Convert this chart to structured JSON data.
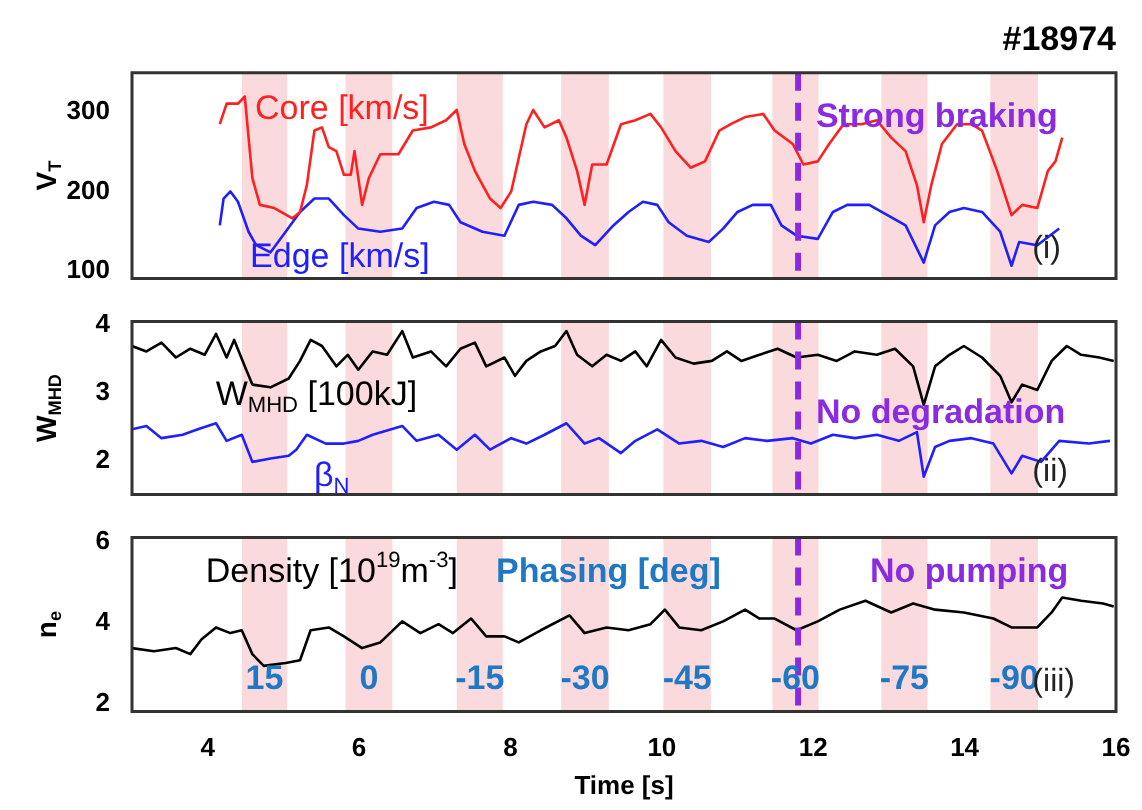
{
  "chart_data": [
    {
      "type": "line",
      "title": "#18974",
      "ylabel": "V$_{T}$",
      "xlim": [
        3,
        16
      ],
      "xticks": [
        4,
        6,
        8,
        10,
        12,
        14,
        16
      ],
      "ylim": [
        90,
        350
      ],
      "yticks": [
        100,
        200,
        300
      ],
      "tick_labels": "y",
      "bands": [
        {
          "axis": "x",
          "from": 4.45,
          "to": 5.05,
          "color": "#fadadd"
        },
        {
          "axis": "x",
          "from": 5.82,
          "to": 6.44,
          "color": "#fadadd"
        },
        {
          "axis": "x",
          "from": 7.29,
          "to": 7.9,
          "color": "#fadadd"
        },
        {
          "axis": "x",
          "from": 8.67,
          "to": 9.3,
          "color": "#fadadd"
        },
        {
          "axis": "x",
          "from": 10.02,
          "to": 10.65,
          "color": "#fadadd"
        },
        {
          "axis": "x",
          "from": 11.46,
          "to": 12.07,
          "color": "#fadadd"
        },
        {
          "axis": "x",
          "from": 12.9,
          "to": 13.51,
          "color": "#fadadd"
        },
        {
          "axis": "x",
          "from": 14.34,
          "to": 14.97,
          "color": "#fadadd"
        }
      ],
      "ref_lines": [
        {
          "axis": "x",
          "value": 11.8,
          "color": "#8a2be2",
          "line_style": "dashed"
        }
      ],
      "annotations": [
        "Strong braking",
        "(i)"
      ],
      "series": [
        {
          "name": "Core [km/s]",
          "color": "#ff2020",
          "x": [
            4.16,
            4.25,
            4.4,
            4.49,
            4.59,
            4.69,
            4.88,
            5.12,
            5.22,
            5.31,
            5.41,
            5.51,
            5.6,
            5.7,
            5.8,
            5.89,
            5.94,
            6.04,
            6.13,
            6.28,
            6.52,
            6.71,
            6.95,
            7.15,
            7.29,
            7.39,
            7.53,
            7.73,
            7.87,
            8.01,
            8.21,
            8.3,
            8.45,
            8.64,
            8.74,
            8.88,
            8.98,
            9.08,
            9.27,
            9.46,
            9.65,
            9.85,
            9.99,
            10.18,
            10.38,
            10.57,
            10.76,
            10.91,
            11.1,
            11.34,
            11.49,
            11.73,
            11.87,
            12.06,
            12.21,
            12.4,
            12.64,
            12.84,
            13.03,
            13.22,
            13.37,
            13.46,
            13.56,
            13.7,
            13.9,
            14.09,
            14.23,
            14.43,
            14.62,
            14.76,
            14.96,
            15.1,
            15.2,
            15.29
          ],
          "values": [
            285,
            311,
            311,
            320,
            217,
            183,
            179,
            166,
            174,
            208,
            277,
            281,
            256,
            251,
            221,
            221,
            251,
            183,
            217,
            247,
            247,
            277,
            281,
            290,
            303,
            260,
            226,
            191,
            179,
            200,
            285,
            303,
            281,
            290,
            268,
            226,
            183,
            234,
            234,
            285,
            290,
            298,
            281,
            251,
            230,
            238,
            277,
            285,
            294,
            298,
            277,
            260,
            234,
            238,
            260,
            285,
            285,
            290,
            268,
            251,
            208,
            161,
            208,
            260,
            285,
            285,
            277,
            226,
            170,
            183,
            179,
            226,
            238,
            268
          ]
        },
        {
          "name": "Edge [km/s]",
          "color": "#2020ff",
          "x": [
            4.16,
            4.21,
            4.3,
            4.4,
            4.54,
            4.64,
            4.83,
            5.03,
            5.22,
            5.41,
            5.6,
            5.8,
            5.99,
            6.28,
            6.57,
            6.76,
            6.99,
            7.19,
            7.34,
            7.63,
            7.92,
            8.11,
            8.3,
            8.55,
            8.74,
            8.93,
            9.12,
            9.36,
            9.56,
            9.75,
            9.94,
            10.09,
            10.33,
            10.62,
            10.81,
            11.0,
            11.2,
            11.44,
            11.58,
            11.78,
            12.06,
            12.26,
            12.45,
            12.74,
            12.98,
            13.22,
            13.46,
            13.61,
            13.8,
            13.99,
            14.23,
            14.47,
            14.62,
            14.72,
            14.96,
            15.25
          ],
          "values": [
            157,
            191,
            200,
            187,
            149,
            132,
            123,
            149,
            174,
            191,
            191,
            170,
            153,
            149,
            153,
            179,
            187,
            183,
            161,
            149,
            144,
            183,
            187,
            183,
            166,
            144,
            132,
            157,
            174,
            187,
            183,
            161,
            144,
            136,
            153,
            174,
            183,
            183,
            157,
            144,
            140,
            174,
            183,
            183,
            170,
            157,
            110,
            157,
            174,
            179,
            174,
            149,
            106,
            136,
            132,
            153
          ]
        }
      ]
    },
    {
      "type": "line",
      "ylabel": "W$_{MHD}$",
      "xlim": [
        3,
        16
      ],
      "xticks": [
        4,
        6,
        8,
        10,
        12,
        14,
        16
      ],
      "ylim": [
        1.5,
        4.05
      ],
      "yticks": [
        2,
        3,
        4
      ],
      "tick_labels": "y",
      "bands": [
        {
          "axis": "x",
          "from": 4.45,
          "to": 5.05,
          "color": "#fadadd"
        },
        {
          "axis": "x",
          "from": 5.82,
          "to": 6.44,
          "color": "#fadadd"
        },
        {
          "axis": "x",
          "from": 7.29,
          "to": 7.9,
          "color": "#fadadd"
        },
        {
          "axis": "x",
          "from": 8.67,
          "to": 9.3,
          "color": "#fadadd"
        },
        {
          "axis": "x",
          "from": 10.02,
          "to": 10.65,
          "color": "#fadadd"
        },
        {
          "axis": "x",
          "from": 11.46,
          "to": 12.07,
          "color": "#fadadd"
        },
        {
          "axis": "x",
          "from": 12.9,
          "to": 13.51,
          "color": "#fadadd"
        },
        {
          "axis": "x",
          "from": 14.34,
          "to": 14.97,
          "color": "#fadadd"
        }
      ],
      "ref_lines": [
        {
          "axis": "x",
          "value": 11.8,
          "color": "#8a2be2",
          "line_style": "dashed"
        }
      ],
      "annotations": [
        "No degradation",
        "(ii)"
      ],
      "series": [
        {
          "name": "W$_{MHD}$ [100kJ]",
          "color": "#000000",
          "x": [
            3.0,
            3.19,
            3.39,
            3.58,
            3.77,
            3.96,
            4.11,
            4.25,
            4.35,
            4.49,
            4.59,
            4.83,
            5.07,
            5.22,
            5.36,
            5.51,
            5.7,
            5.85,
            5.99,
            6.18,
            6.37,
            6.57,
            6.71,
            6.95,
            7.15,
            7.34,
            7.53,
            7.68,
            7.92,
            8.06,
            8.21,
            8.4,
            8.59,
            8.74,
            8.88,
            9.08,
            9.27,
            9.46,
            9.65,
            9.8,
            9.99,
            10.18,
            10.42,
            10.66,
            10.86,
            11.05,
            11.29,
            11.53,
            11.78,
            12.06,
            12.31,
            12.55,
            12.84,
            13.08,
            13.32,
            13.46,
            13.61,
            13.8,
            13.99,
            14.23,
            14.47,
            14.62,
            14.76,
            14.96,
            15.15,
            15.35,
            15.54,
            15.78,
            15.97
          ],
          "values": [
            3.69,
            3.61,
            3.74,
            3.52,
            3.65,
            3.56,
            3.87,
            3.52,
            3.78,
            3.39,
            3.12,
            3.08,
            3.21,
            3.47,
            3.78,
            3.69,
            3.39,
            3.56,
            3.34,
            3.61,
            3.56,
            3.91,
            3.52,
            3.61,
            3.39,
            3.65,
            3.74,
            3.39,
            3.52,
            3.25,
            3.47,
            3.61,
            3.69,
            3.91,
            3.56,
            3.39,
            3.56,
            3.47,
            3.61,
            3.39,
            3.78,
            3.52,
            3.43,
            3.47,
            3.61,
            3.47,
            3.56,
            3.65,
            3.52,
            3.56,
            3.47,
            3.61,
            3.56,
            3.65,
            3.39,
            2.82,
            3.39,
            3.56,
            3.69,
            3.52,
            3.25,
            2.86,
            3.12,
            3.04,
            3.47,
            3.69,
            3.56,
            3.52,
            3.47
          ]
        },
        {
          "name": "β$_{N}$",
          "color": "#2020ff",
          "x": [
            3.0,
            3.19,
            3.39,
            3.67,
            3.87,
            4.11,
            4.25,
            4.45,
            4.59,
            4.83,
            5.07,
            5.17,
            5.31,
            5.56,
            5.8,
            5.99,
            6.18,
            6.57,
            6.76,
            7.05,
            7.29,
            7.53,
            7.73,
            8.01,
            8.21,
            8.45,
            8.74,
            8.98,
            9.17,
            9.46,
            9.65,
            9.94,
            10.23,
            10.52,
            10.81,
            11.1,
            11.39,
            11.73,
            11.97,
            12.26,
            12.55,
            12.84,
            13.13,
            13.37,
            13.46,
            13.61,
            13.8,
            14.09,
            14.38,
            14.62,
            14.76,
            15.01,
            15.25,
            15.64,
            15.92
          ],
          "values": [
            2.46,
            2.51,
            2.33,
            2.38,
            2.46,
            2.55,
            2.29,
            2.38,
            1.98,
            2.03,
            2.07,
            2.16,
            2.38,
            2.25,
            2.25,
            2.29,
            2.38,
            2.51,
            2.29,
            2.38,
            2.16,
            2.38,
            2.16,
            2.33,
            2.25,
            2.38,
            2.55,
            2.25,
            2.33,
            2.11,
            2.29,
            2.46,
            2.25,
            2.29,
            2.2,
            2.33,
            2.29,
            2.33,
            2.25,
            2.38,
            2.33,
            2.38,
            2.29,
            2.42,
            1.76,
            2.2,
            2.29,
            2.33,
            2.25,
            1.81,
            2.07,
            1.98,
            2.29,
            2.25,
            2.29
          ]
        }
      ]
    },
    {
      "type": "line",
      "xlabel": "Time [s]",
      "ylabel": "n$_{e}$",
      "xlim": [
        3,
        16
      ],
      "xticks": [
        4,
        6,
        8,
        10,
        12,
        14,
        16
      ],
      "ylim": [
        1.8,
        6.1
      ],
      "yticks": [
        2,
        4,
        6
      ],
      "bands": [
        {
          "axis": "x",
          "from": 4.45,
          "to": 5.05,
          "color": "#fadadd",
          "label": "15"
        },
        {
          "axis": "x",
          "from": 5.82,
          "to": 6.44,
          "color": "#fadadd",
          "label": "0"
        },
        {
          "axis": "x",
          "from": 7.29,
          "to": 7.9,
          "color": "#fadadd",
          "label": "-15"
        },
        {
          "axis": "x",
          "from": 8.67,
          "to": 9.3,
          "color": "#fadadd",
          "label": "-30"
        },
        {
          "axis": "x",
          "from": 10.02,
          "to": 10.65,
          "color": "#fadadd",
          "label": "-45"
        },
        {
          "axis": "x",
          "from": 11.46,
          "to": 12.07,
          "color": "#fadadd",
          "label": "-60"
        },
        {
          "axis": "x",
          "from": 12.9,
          "to": 13.51,
          "color": "#fadadd",
          "label": "-75"
        },
        {
          "axis": "x",
          "from": 14.34,
          "to": 14.97,
          "color": "#fadadd",
          "label": "-90"
        }
      ],
      "ref_lines": [
        {
          "axis": "x",
          "value": 11.8,
          "color": "#8a2be2",
          "line_style": "dashed"
        }
      ],
      "annotations": [
        "Phasing [deg]",
        "No pumping",
        "(iii)"
      ],
      "series": [
        {
          "name": "Density [10$^{19}$m$^{-3}$]",
          "color": "#000000",
          "x": [
            3.0,
            3.29,
            3.58,
            3.77,
            3.92,
            4.11,
            4.3,
            4.45,
            4.59,
            4.74,
            5.03,
            5.22,
            5.36,
            5.6,
            5.8,
            6.04,
            6.28,
            6.57,
            6.81,
            7.05,
            7.24,
            7.48,
            7.68,
            7.92,
            8.11,
            8.4,
            8.78,
            8.98,
            9.27,
            9.56,
            9.85,
            10.04,
            10.23,
            10.52,
            10.81,
            11.1,
            11.29,
            11.49,
            11.78,
            12.06,
            12.35,
            12.69,
            13.03,
            13.32,
            13.61,
            13.99,
            14.38,
            14.62,
            14.96,
            15.15,
            15.29,
            15.54,
            15.83,
            15.97
          ],
          "values": [
            3.37,
            3.29,
            3.37,
            3.22,
            3.59,
            3.88,
            3.74,
            3.81,
            3.22,
            2.93,
            3.0,
            3.07,
            3.81,
            3.88,
            3.66,
            3.37,
            3.51,
            4.03,
            3.74,
            3.96,
            3.74,
            4.1,
            3.66,
            3.66,
            3.51,
            3.81,
            4.18,
            3.74,
            3.88,
            3.81,
            3.96,
            4.32,
            3.88,
            3.81,
            4.03,
            4.32,
            4.1,
            4.1,
            3.81,
            4.03,
            4.32,
            4.54,
            4.25,
            4.47,
            4.32,
            4.25,
            4.1,
            3.88,
            3.88,
            4.25,
            4.62,
            4.54,
            4.47,
            4.4
          ]
        }
      ]
    }
  ]
}
